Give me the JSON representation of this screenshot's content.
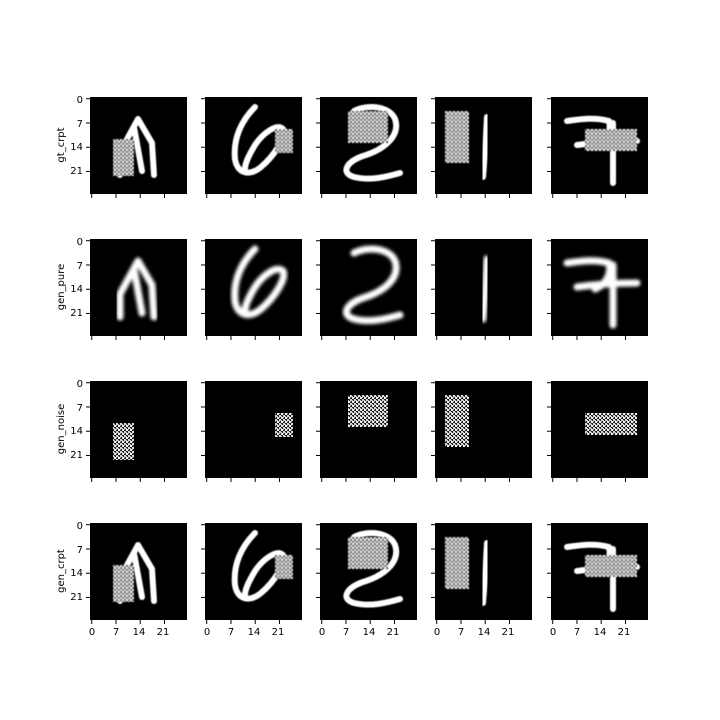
{
  "figure": {
    "rows": [
      {
        "label": "gt_crpt"
      },
      {
        "label": "gen_pure"
      },
      {
        "label": "gen_noise"
      },
      {
        "label": "gen_crpt"
      }
    ],
    "columns": 5,
    "y_ticks": [
      "0",
      "7",
      "14",
      "21"
    ],
    "x_ticks": [
      "0",
      "7",
      "14",
      "21"
    ],
    "x_tick_values": [
      0,
      7,
      14,
      21
    ],
    "y_tick_values": [
      0,
      7,
      14,
      21
    ],
    "image_size": 28,
    "colors": {
      "background": "#ffffff",
      "panel": "#000000",
      "stroke": "#ffffff",
      "axis": "#000000"
    },
    "digits_depicted": [
      "4",
      "6",
      "2",
      "1",
      "7"
    ]
  }
}
